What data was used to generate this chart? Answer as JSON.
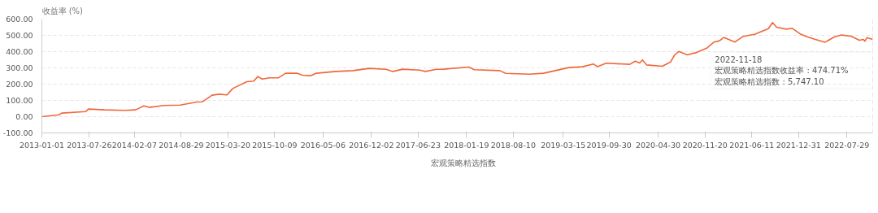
{
  "chart_data": {
    "type": "line",
    "ylabel": "收益率 (%)",
    "x": [
      "2013-01-01",
      "2013-03-16",
      "2013-03-28",
      "2013-07-10",
      "2013-07-22",
      "2013-10-01",
      "2013-12-25",
      "2014-02-12",
      "2014-03-20",
      "2014-04-13",
      "2014-06-13",
      "2014-08-25",
      "2014-11-04",
      "2014-11-28",
      "2015-01-10",
      "2015-02-10",
      "2015-03-16",
      "2015-04-10",
      "2015-06-10",
      "2015-07-10",
      "2015-07-28",
      "2015-08-16",
      "2015-09-16",
      "2015-10-26",
      "2015-11-25",
      "2016-01-13",
      "2016-02-07",
      "2016-03-14",
      "2016-04-07",
      "2016-07-01",
      "2016-09-13",
      "2016-11-22",
      "2017-02-04",
      "2017-03-05",
      "2017-04-17",
      "2017-06-30",
      "2017-07-24",
      "2017-09-10",
      "2017-10-10",
      "2018-01-29",
      "2018-02-22",
      "2018-06-13",
      "2018-07-08",
      "2018-10-20",
      "2018-12-19",
      "2019-04-08",
      "2019-06-06",
      "2019-07-24",
      "2019-08-11",
      "2019-09-17",
      "2019-12-29",
      "2020-01-22",
      "2020-02-10",
      "2020-02-22",
      "2020-03-12",
      "2020-05-18",
      "2020-06-23",
      "2020-07-11",
      "2020-07-29",
      "2020-09-04",
      "2020-10-10",
      "2020-11-29",
      "2020-12-29",
      "2021-01-22",
      "2021-02-09",
      "2021-03-30",
      "2021-05-05",
      "2021-06-23",
      "2021-08-22",
      "2021-09-09",
      "2021-09-27",
      "2021-11-08",
      "2021-12-02",
      "2022-01-07",
      "2022-02-06",
      "2022-03-14",
      "2022-04-25",
      "2022-06-06",
      "2022-07-06",
      "2022-08-16",
      "2022-09-21",
      "2022-10-09",
      "2022-10-15",
      "2022-10-24",
      "2022-11-18"
    ],
    "series": [
      {
        "name": "宏观策略精选指数",
        "color": "#f0673a",
        "values": [
          0,
          11,
          22,
          31,
          47,
          42,
          39,
          42,
          66,
          57,
          69,
          71,
          90,
          91,
          132,
          138,
          134,
          173,
          215,
          219,
          247,
          231,
          239,
          239,
          267,
          267,
          255,
          252,
          267,
          278,
          283,
          297,
          291,
          278,
          292,
          286,
          278,
          291,
          292,
          305,
          289,
          283,
          266,
          261,
          267,
          302,
          307,
          324,
          307,
          329,
          322,
          341,
          330,
          349,
          318,
          310,
          336,
          380,
          401,
          380,
          393,
          423,
          459,
          467,
          487,
          459,
          494,
          506,
          541,
          579,
          550,
          538,
          544,
          509,
          491,
          475,
          458,
          491,
          502,
          495,
          470,
          475,
          464,
          486,
          474.71
        ]
      }
    ],
    "xlim": [
      "2013-01-01",
      "2022-11-18"
    ],
    "xticks": [
      "2013-01-01",
      "2013-07-26",
      "2014-02-07",
      "2014-08-29",
      "2015-03-20",
      "2015-10-09",
      "2016-05-06",
      "2016-12-02",
      "2017-06-23",
      "2018-01-19",
      "2018-08-10",
      "2019-03-15",
      "2019-09-30",
      "2020-04-30",
      "2020-11-20",
      "2021-06-11",
      "2021-12-31",
      "2022-07-29"
    ],
    "ylim": [
      -100,
      600
    ],
    "yticks": [
      {
        "value": -100,
        "label": "-100.00"
      },
      {
        "value": 0,
        "label": "0.00"
      },
      {
        "value": 100,
        "label": "100.00"
      },
      {
        "value": 200,
        "label": "200.00"
      },
      {
        "value": 300,
        "label": "300.00"
      },
      {
        "value": 400,
        "label": "400.00"
      },
      {
        "value": 500,
        "label": "500.00"
      },
      {
        "value": 600,
        "label": "600.00"
      }
    ],
    "grid": "y",
    "legend": "bottom",
    "marker": "none",
    "line_style": "solid",
    "ref_lines": [
      {
        "axis": "x",
        "value": "2022-11-18",
        "color": "#cccccc",
        "line_style": "dashed"
      }
    ],
    "annotations": [
      "2022-11-18",
      "宏观策略精选指数收益率 : 474.71%",
      "宏观策略精选指数 : 5,747.10"
    ]
  }
}
